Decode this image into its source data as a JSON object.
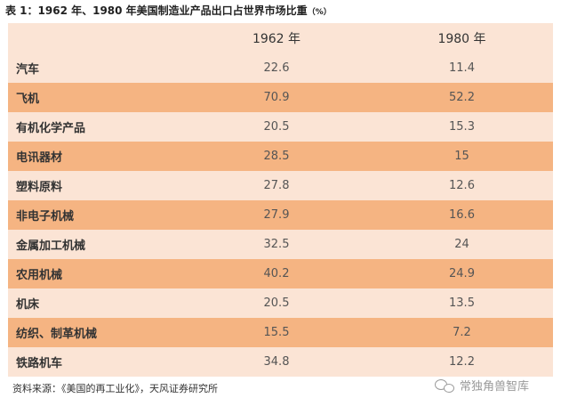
{
  "title": {
    "text": "表 1：1962 年、1980 年美国制造业产品出口占世界市场比重",
    "unit": "（%）"
  },
  "table": {
    "headers": [
      "",
      "1962 年",
      "1980 年"
    ],
    "rows": [
      [
        "汽车",
        "22.6",
        "11.4"
      ],
      [
        "飞机",
        "70.9",
        "52.2"
      ],
      [
        "有机化学产品",
        "20.5",
        "15.3"
      ],
      [
        "电讯器材",
        "28.5",
        "15"
      ],
      [
        "塑料原料",
        "27.8",
        "12.6"
      ],
      [
        "非电子机械",
        "27.9",
        "16.6"
      ],
      [
        "金属加工机械",
        "32.5",
        "24"
      ],
      [
        "农用机械",
        "40.2",
        "24.9"
      ],
      [
        "机床",
        "20.5",
        "13.5"
      ],
      [
        "纺织、制革机械",
        "15.5",
        "7.2"
      ],
      [
        "铁路机车",
        "34.8",
        "12.2"
      ]
    ]
  },
  "source": "资料来源：《美国的再工业化》，天风证券研究所",
  "watermark": {
    "text": "常独角兽智库",
    "icon": "wechat-icon"
  },
  "colors": {
    "header_bg": "#fbe4d5",
    "light_row": "#fbe4d5",
    "dark_row": "#f5b482"
  }
}
